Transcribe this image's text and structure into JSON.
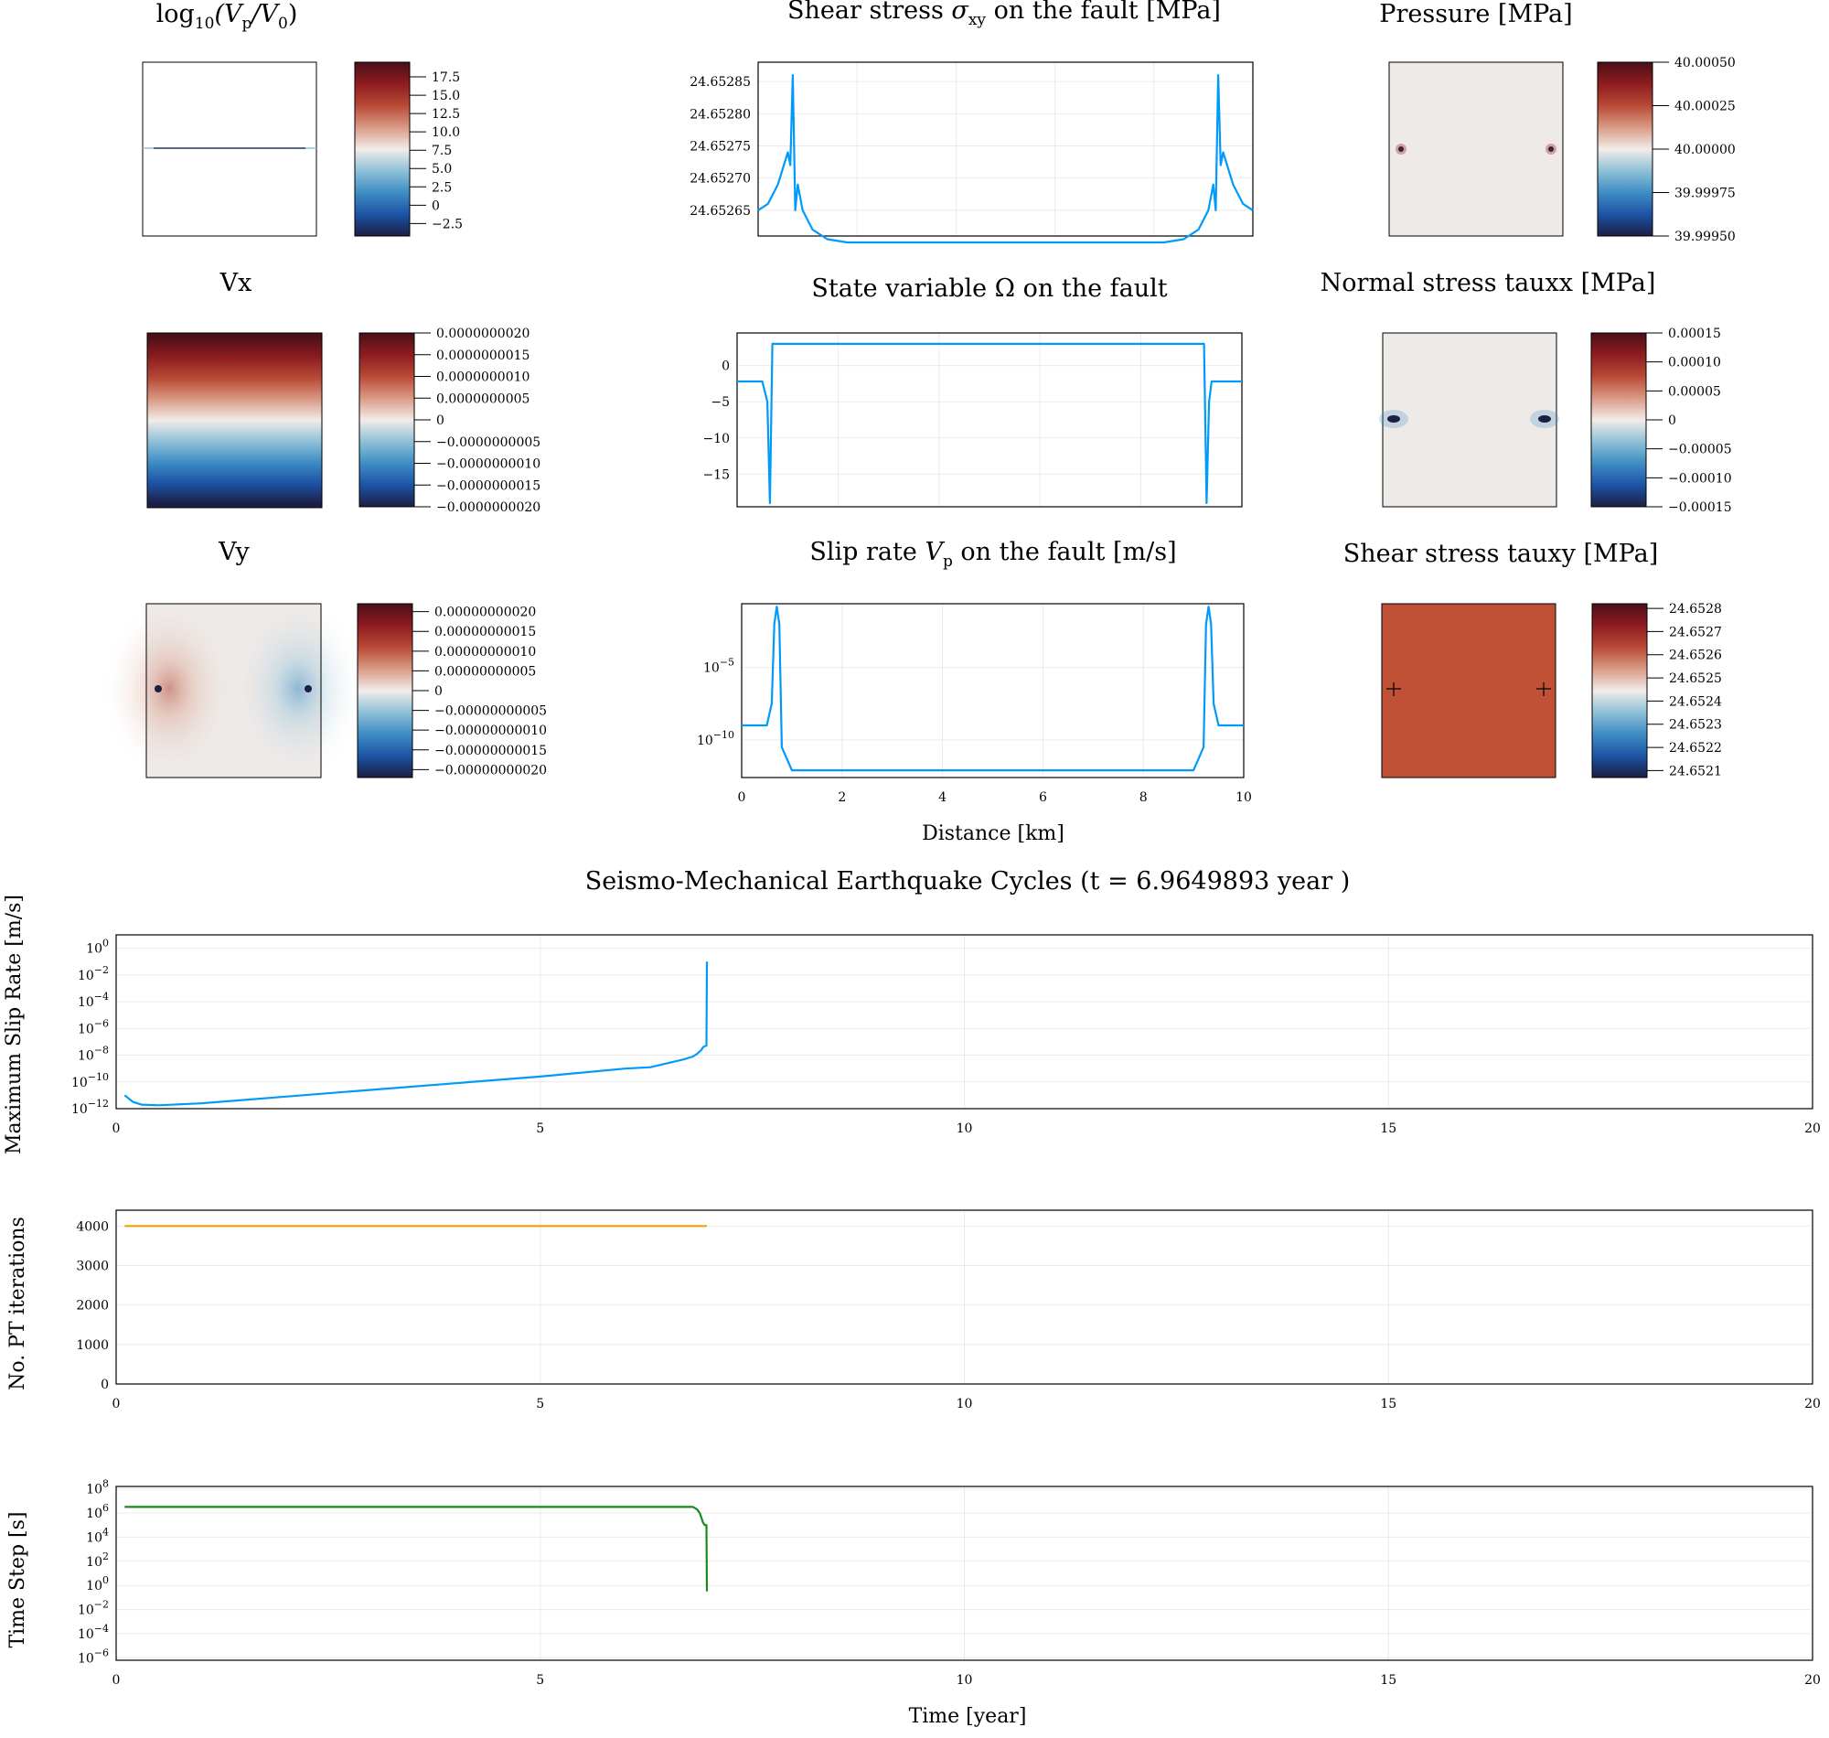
{
  "colors": {
    "series_blue": "#009AFA",
    "series_orange": "#F2A000",
    "series_green": "#1B8A1B",
    "field_neutral": "#EEEAE8",
    "field_tauxy": "#C05137",
    "cmap": [
      "#1C1E44",
      "#1D53A5",
      "#3E8DC4",
      "#8FC1D8",
      "#F2ECE9",
      "#D99A85",
      "#B84A36",
      "#8E1C1F",
      "#4A0F18"
    ]
  },
  "panels": {
    "vp_map": {
      "title_parts": [
        "log",
        "10",
        "(V",
        "p",
        "/V",
        "0",
        ")"
      ],
      "cb_ticks": [
        "17.5",
        "15.0",
        "12.5",
        "10.0",
        "7.5",
        "5.0",
        "2.5",
        "0",
        "−2.5"
      ],
      "cb_range": [
        19.5,
        -4.2
      ]
    },
    "vx_map": {
      "title": "Vx",
      "cb_ticks": [
        "0.0000000020",
        "0.0000000015",
        "0.0000000010",
        "0.0000000005",
        "0",
        "−0.0000000005",
        "−0.0000000010",
        "−0.0000000015",
        "−0.0000000020"
      ],
      "cb_range": [
        2e-09,
        -2e-09
      ]
    },
    "vy_map": {
      "title": "Vy",
      "cb_ticks": [
        "0.00000000020",
        "0.00000000015",
        "0.00000000010",
        "0.00000000005",
        "0",
        "−0.00000000005",
        "−0.00000000010",
        "−0.00000000015",
        "−0.00000000020"
      ],
      "cb_range": [
        2.2e-10,
        -2.2e-10
      ]
    },
    "pressure_map": {
      "title": "Pressure [MPa]",
      "cb_ticks": [
        "40.00050",
        "40.00025",
        "40.00000",
        "39.99975",
        "39.99950"
      ],
      "cb_range": [
        40.0005,
        39.9995
      ]
    },
    "tauxx_map": {
      "title": "Normal stress tauxx [MPa]",
      "cb_ticks": [
        "0.00015",
        "0.00010",
        "0.00005",
        "0",
        "−0.00005",
        "−0.00010",
        "−0.00015"
      ],
      "cb_range": [
        0.00015,
        -0.00015
      ]
    },
    "tauxy_map": {
      "title": "Shear stress tauxy [MPa]",
      "cb_ticks": [
        "24.6528",
        "24.6527",
        "24.6526",
        "24.6525",
        "24.6524",
        "24.6523",
        "24.6522",
        "24.6521"
      ],
      "cb_range": [
        24.65282,
        24.65207
      ]
    }
  },
  "chart_data": [
    {
      "type": "line",
      "title_parts": [
        "Shear stress ",
        "σ",
        "xy",
        " on the fault [MPa]"
      ],
      "xlim": [
        0,
        10
      ],
      "ylim": [
        24.65261,
        24.65288
      ],
      "yticks": [
        "24.65285",
        "24.65280",
        "24.65275",
        "24.65270",
        "24.65265"
      ],
      "series": [
        {
          "x": [
            0,
            0.2,
            0.4,
            0.6,
            0.65,
            0.7,
            0.75,
            0.8,
            0.9,
            1.1,
            1.4,
            1.8,
            2.5,
            5,
            7.5,
            8.2,
            8.6,
            8.9,
            9.1,
            9.2,
            9.25,
            9.3,
            9.35,
            9.4,
            9.6,
            9.8,
            10
          ],
          "values": [
            24.65265,
            24.65266,
            24.65269,
            24.65274,
            24.65272,
            24.65286,
            24.65265,
            24.65269,
            24.65265,
            24.65262,
            24.652605,
            24.6526,
            24.6526,
            24.6526,
            24.6526,
            24.6526,
            24.652605,
            24.65262,
            24.65265,
            24.65269,
            24.65265,
            24.65286,
            24.65272,
            24.65274,
            24.65269,
            24.65266,
            24.65265
          ]
        }
      ]
    },
    {
      "type": "line",
      "title_parts": [
        "State variable ",
        "Ω",
        " on the fault"
      ],
      "xlim": [
        0,
        10
      ],
      "ylim": [
        -19.5,
        4.5
      ],
      "yticks": [
        "0",
        "−5",
        "−10",
        "−15"
      ],
      "ytick_values": [
        0,
        -5,
        -10,
        -15
      ],
      "series": [
        {
          "x": [
            0,
            0.5,
            0.6,
            0.65,
            0.7,
            0.75,
            9.25,
            9.3,
            9.35,
            9.4,
            9.5,
            10
          ],
          "values": [
            -2.2,
            -2.2,
            -5,
            -19,
            3,
            3,
            3,
            -19,
            -5,
            -2.2,
            -2.2,
            -2.2
          ]
        }
      ]
    },
    {
      "type": "line",
      "title_parts": [
        "Slip rate ",
        "V",
        "p",
        " on the fault [m/s]"
      ],
      "xlim": [
        0,
        10
      ],
      "ylim_log10": [
        -12.6,
        -0.6
      ],
      "yticks": [
        {
          "base": "10",
          "exp": "−5",
          "v": -5
        },
        {
          "base": "10",
          "exp": "−10",
          "v": -10
        }
      ],
      "xticks": [
        "0",
        "2",
        "4",
        "6",
        "8",
        "10"
      ],
      "xlabel": "Distance [km]",
      "series": [
        {
          "x": [
            0,
            0.5,
            0.6,
            0.65,
            0.7,
            0.75,
            0.8,
            1.0,
            9.0,
            9.2,
            9.25,
            9.3,
            9.35,
            9.4,
            9.5,
            10
          ],
          "log10_values": [
            -9,
            -9,
            -7.5,
            -2,
            -0.8,
            -2,
            -10.5,
            -12.1,
            -12.1,
            -10.5,
            -2,
            -0.8,
            -2,
            -7.5,
            -9,
            -9
          ]
        }
      ]
    },
    {
      "type": "line",
      "title": "Seismo-Mechanical Earthquake Cycles (t = 6.9649893 year )",
      "ylabel": "Maximum Slip Rate [m/s]",
      "xlim": [
        0,
        20
      ],
      "ylim_log10": [
        -12,
        1
      ],
      "xticks": [
        "0",
        "5",
        "10",
        "15",
        "20"
      ],
      "yticks": [
        {
          "base": "10",
          "exp": "0",
          "v": 0
        },
        {
          "base": "10",
          "exp": "−2",
          "v": -2
        },
        {
          "base": "10",
          "exp": "−4",
          "v": -4
        },
        {
          "base": "10",
          "exp": "−6",
          "v": -6
        },
        {
          "base": "10",
          "exp": "−8",
          "v": -8
        },
        {
          "base": "10",
          "exp": "−10",
          "v": -10
        },
        {
          "base": "10",
          "exp": "−12",
          "v": -12
        }
      ],
      "series": [
        {
          "x": [
            0.1,
            0.2,
            0.3,
            0.5,
            1,
            2,
            3,
            4,
            5,
            6,
            6.3,
            6.5,
            6.7,
            6.8,
            6.85,
            6.9,
            6.92,
            6.95,
            6.96,
            6.965
          ],
          "log10_values": [
            -11,
            -11.5,
            -11.7,
            -11.75,
            -11.6,
            -11.1,
            -10.6,
            -10.1,
            -9.6,
            -9,
            -8.9,
            -8.6,
            -8.3,
            -8.1,
            -7.9,
            -7.6,
            -7.4,
            -7.3,
            -7.3,
            -1
          ]
        }
      ]
    },
    {
      "type": "line",
      "ylabel": "No. PT iterations",
      "xlim": [
        0,
        20
      ],
      "ylim": [
        0,
        4400
      ],
      "xticks": [
        "0",
        "5",
        "10",
        "15",
        "20"
      ],
      "yticks": [
        "4000",
        "3000",
        "2000",
        "1000",
        "0"
      ],
      "ytick_values": [
        4000,
        3000,
        2000,
        1000,
        0
      ],
      "series": [
        {
          "x": [
            0.1,
            6.965
          ],
          "values": [
            4000,
            4000
          ]
        }
      ]
    },
    {
      "type": "line",
      "ylabel": "Time Step [s]",
      "xlabel": "Time [year]",
      "xlim": [
        0,
        20
      ],
      "ylim_log10": [
        -6.2,
        8.2
      ],
      "xticks": [
        "0",
        "5",
        "10",
        "15",
        "20"
      ],
      "yticks": [
        {
          "base": "10",
          "exp": "8",
          "v": 8
        },
        {
          "base": "10",
          "exp": "6",
          "v": 6
        },
        {
          "base": "10",
          "exp": "4",
          "v": 4
        },
        {
          "base": "10",
          "exp": "2",
          "v": 2
        },
        {
          "base": "10",
          "exp": "0",
          "v": 0
        },
        {
          "base": "10",
          "exp": "−2",
          "v": -2
        },
        {
          "base": "10",
          "exp": "−4",
          "v": -4
        },
        {
          "base": "10",
          "exp": "−6",
          "v": -6
        }
      ],
      "series": [
        {
          "x": [
            0.1,
            1,
            3,
            5,
            6.8,
            6.85,
            6.88,
            6.9,
            6.92,
            6.94,
            6.96,
            6.965
          ],
          "log10_values": [
            6.5,
            6.5,
            6.5,
            6.5,
            6.5,
            6.3,
            6,
            5.6,
            5.2,
            5,
            5,
            -0.5
          ]
        }
      ]
    }
  ]
}
